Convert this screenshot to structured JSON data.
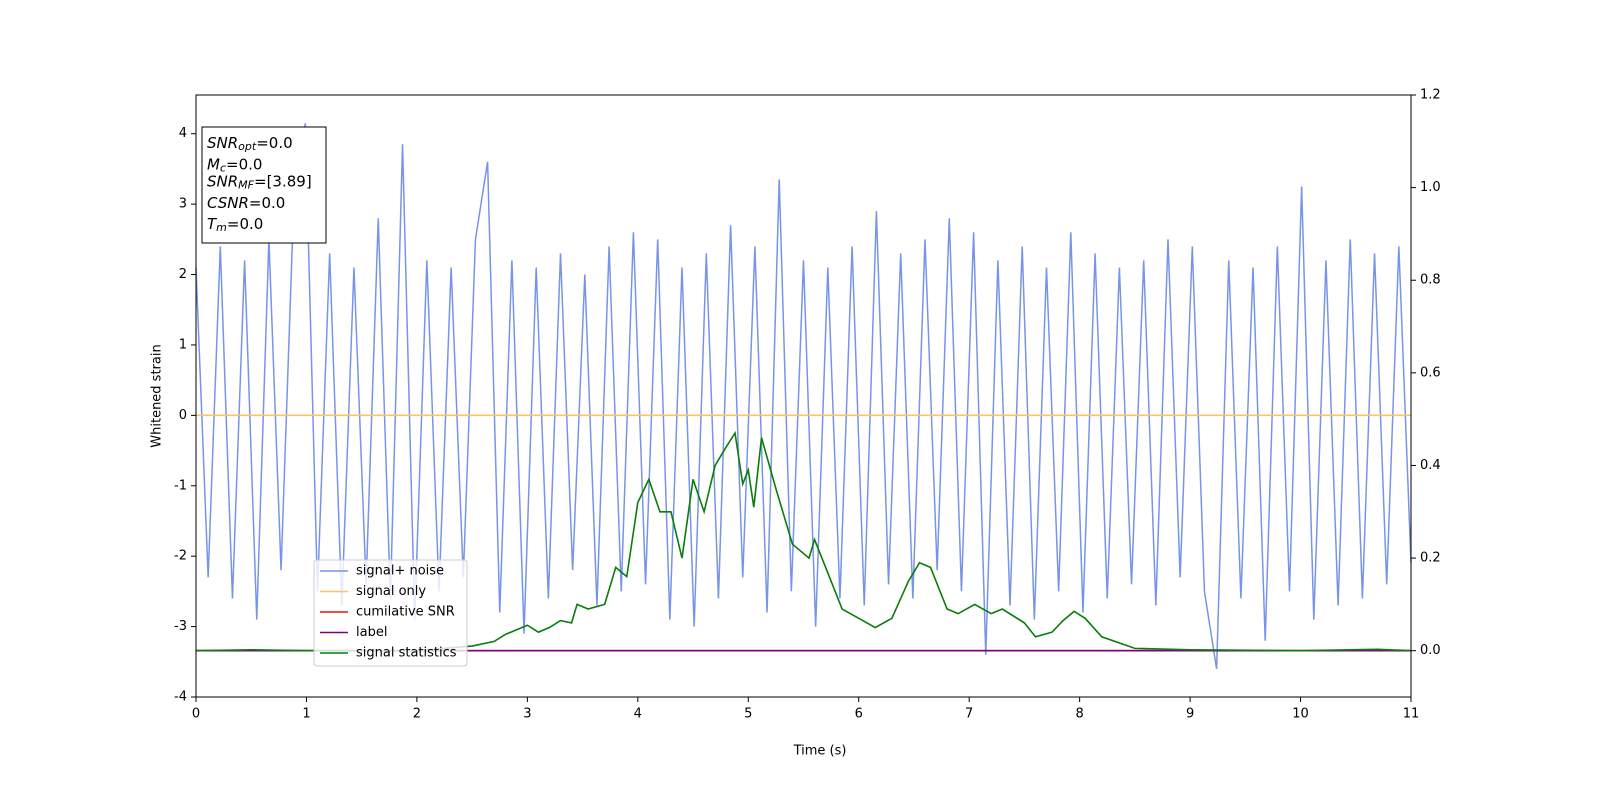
{
  "chart_data": {
    "type": "line",
    "xlabel": "Time (s)",
    "ylabel": "Whitened strain",
    "xlim": [
      0,
      11
    ],
    "xticks": [
      0,
      1,
      2,
      3,
      4,
      5,
      6,
      7,
      8,
      9,
      10,
      11
    ],
    "ylim": [
      -4,
      4.55
    ],
    "yticks": [
      -4,
      -3,
      -2,
      -1,
      0,
      1,
      2,
      3,
      4
    ],
    "y2lim": [
      -0.1,
      1.2
    ],
    "y2ticks": [
      {
        "value": 0,
        "label": "0.0"
      },
      0.2,
      0.4,
      0.6,
      0.8,
      {
        "value": 1,
        "label": "1.0"
      },
      1.2
    ],
    "legend": "best",
    "annotations": [
      {
        "symbol": "SNR",
        "sub": "opt",
        "text": "=0.0"
      },
      {
        "symbol": "M",
        "sub": "c",
        "text": "=0.0"
      },
      {
        "symbol": "SNR",
        "sub": "MF",
        "text": "=[3.89]"
      },
      {
        "symbol": "CSNR",
        "text": "=0.0"
      },
      {
        "symbol": "T",
        "sub": "m",
        "text": "=0.0"
      }
    ],
    "series": [
      {
        "name": "signal+ noise",
        "color": "#7894e8",
        "x": [
          0,
          0.11,
          0.22,
          0.33,
          0.44,
          0.55,
          0.66,
          0.77,
          0.88,
          0.99,
          1.1,
          1.21,
          1.32,
          1.43,
          1.54,
          1.65,
          1.76,
          1.87,
          1.98,
          2.09,
          2.2,
          2.31,
          2.42,
          2.53,
          2.64,
          2.75,
          2.86,
          2.97,
          3.08,
          3.19,
          3.3,
          3.41,
          3.52,
          3.63,
          3.74,
          3.85,
          3.96,
          4.07,
          4.18,
          4.29,
          4.4,
          4.51,
          4.62,
          4.73,
          4.84,
          4.95,
          5.06,
          5.17,
          5.28,
          5.39,
          5.5,
          5.61,
          5.72,
          5.83,
          5.94,
          6.05,
          6.16,
          6.27,
          6.38,
          6.49,
          6.6,
          6.71,
          6.82,
          6.93,
          7.04,
          7.15,
          7.26,
          7.37,
          7.48,
          7.59,
          7.7,
          7.81,
          7.92,
          8.03,
          8.14,
          8.25,
          8.36,
          8.47,
          8.58,
          8.69,
          8.8,
          8.91,
          9.02,
          9.13,
          9.24,
          9.35,
          9.46,
          9.57,
          9.68,
          9.79,
          9.9,
          10.01,
          10.12,
          10.23,
          10.34,
          10.45,
          10.56,
          10.67,
          10.78,
          10.89,
          11
        ],
        "values": [
          2.1,
          -2.3,
          2.4,
          -2.6,
          2.2,
          -2.9,
          2.5,
          -2.2,
          2.8,
          4.15,
          -2.5,
          2.3,
          -2.7,
          2.1,
          -2.4,
          2.8,
          -2.6,
          3.85,
          -2.9,
          2.2,
          -2.5,
          2.1,
          -2.3,
          2.5,
          3.6,
          -2.8,
          2.2,
          -3.1,
          2.1,
          -2.6,
          2.3,
          -2.2,
          2.0,
          -2.7,
          2.4,
          -2.5,
          2.6,
          -2.4,
          2.5,
          -2.9,
          2.1,
          -3.0,
          2.3,
          -2.6,
          2.7,
          -2.3,
          2.4,
          -2.8,
          3.35,
          -2.5,
          2.2,
          -3.0,
          2.1,
          -2.6,
          2.4,
          -2.7,
          2.9,
          -2.4,
          2.3,
          -2.6,
          2.5,
          -2.2,
          2.8,
          -2.5,
          2.6,
          -3.4,
          2.2,
          -2.7,
          2.4,
          -2.9,
          2.1,
          -2.5,
          2.6,
          -2.8,
          2.3,
          -2.6,
          2.1,
          -2.4,
          2.2,
          -2.7,
          2.5,
          -2.3,
          2.4,
          -2.5,
          -3.6,
          2.2,
          -2.6,
          2.1,
          -3.2,
          2.4,
          -2.5,
          3.25,
          -2.9,
          2.2,
          -2.7,
          2.5,
          -2.6,
          2.3,
          -2.4,
          2.4,
          -2.1
        ]
      },
      {
        "name": "signal only",
        "color": "#f5c46b",
        "x": [
          0,
          11
        ],
        "values": [
          0,
          0
        ]
      },
      {
        "name": "cumilative SNR",
        "color": "#e8120c",
        "axis": "y2",
        "x": [
          0,
          11
        ],
        "values": [
          0,
          0
        ]
      },
      {
        "name": "label",
        "color": "#800080",
        "axis": "y2",
        "x": [
          0,
          11
        ],
        "values": [
          0,
          0
        ]
      },
      {
        "name": "signal statistics",
        "color": "#0a7d0a",
        "axis": "y2",
        "x": [
          0,
          0.5,
          1,
          1.5,
          2,
          2.5,
          2.7,
          2.8,
          3.0,
          3.1,
          3.2,
          3.3,
          3.4,
          3.45,
          3.55,
          3.7,
          3.8,
          3.9,
          4.0,
          4.1,
          4.2,
          4.3,
          4.4,
          4.5,
          4.6,
          4.7,
          4.8,
          4.88,
          4.95,
          5.0,
          5.05,
          5.12,
          5.25,
          5.4,
          5.55,
          5.6,
          5.7,
          5.85,
          6.0,
          6.15,
          6.3,
          6.45,
          6.55,
          6.65,
          6.8,
          6.9,
          7.05,
          7.2,
          7.3,
          7.5,
          7.6,
          7.75,
          7.85,
          7.95,
          8.05,
          8.2,
          8.5,
          9,
          10,
          10.7,
          11
        ],
        "values": [
          0.0,
          0.002,
          0.0,
          0.0,
          0.0,
          0.01,
          0.02,
          0.035,
          0.055,
          0.04,
          0.05,
          0.065,
          0.06,
          0.1,
          0.09,
          0.1,
          0.18,
          0.16,
          0.32,
          0.37,
          0.3,
          0.3,
          0.2,
          0.37,
          0.3,
          0.4,
          0.44,
          0.47,
          0.36,
          0.39,
          0.31,
          0.46,
          0.35,
          0.23,
          0.2,
          0.24,
          0.18,
          0.09,
          0.07,
          0.05,
          0.07,
          0.15,
          0.19,
          0.18,
          0.09,
          0.08,
          0.1,
          0.08,
          0.09,
          0.06,
          0.03,
          0.04,
          0.065,
          0.085,
          0.07,
          0.03,
          0.005,
          0.002,
          0.0,
          0.003,
          0.0
        ]
      }
    ]
  }
}
